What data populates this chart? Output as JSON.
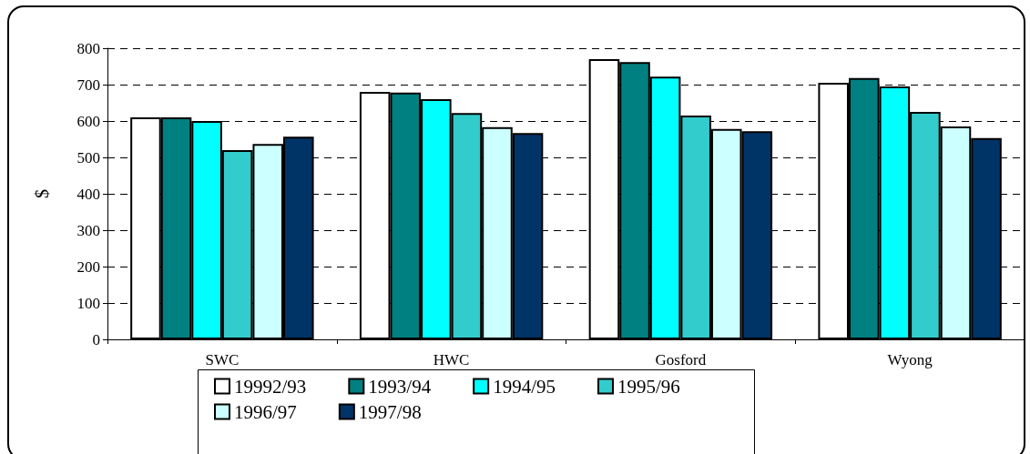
{
  "chart_data": {
    "type": "bar",
    "ylabel": "$",
    "categories": [
      "SWC",
      "HWC",
      "Gosford",
      "Wyong"
    ],
    "series": [
      {
        "name": "19992/93",
        "color": "#ffffff",
        "values": [
          610,
          680,
          770,
          705
        ]
      },
      {
        "name": "1993/94",
        "color": "#008080",
        "values": [
          610,
          678,
          762,
          718
        ]
      },
      {
        "name": "1994/95",
        "color": "#00ffff",
        "values": [
          600,
          660,
          722,
          695
        ]
      },
      {
        "name": "1995/96",
        "color": "#33cccc",
        "values": [
          520,
          622,
          615,
          625
        ]
      },
      {
        "name": "1996/97",
        "color": "#ccffff",
        "values": [
          537,
          583,
          578,
          585
        ]
      },
      {
        "name": "1997/98",
        "color": "#003366",
        "values": [
          557,
          567,
          572,
          553
        ]
      }
    ],
    "ylim": [
      0,
      800
    ],
    "yticks": [
      0,
      100,
      200,
      300,
      400,
      500,
      600,
      700,
      800
    ],
    "grid": "y",
    "legend": "bottom"
  }
}
